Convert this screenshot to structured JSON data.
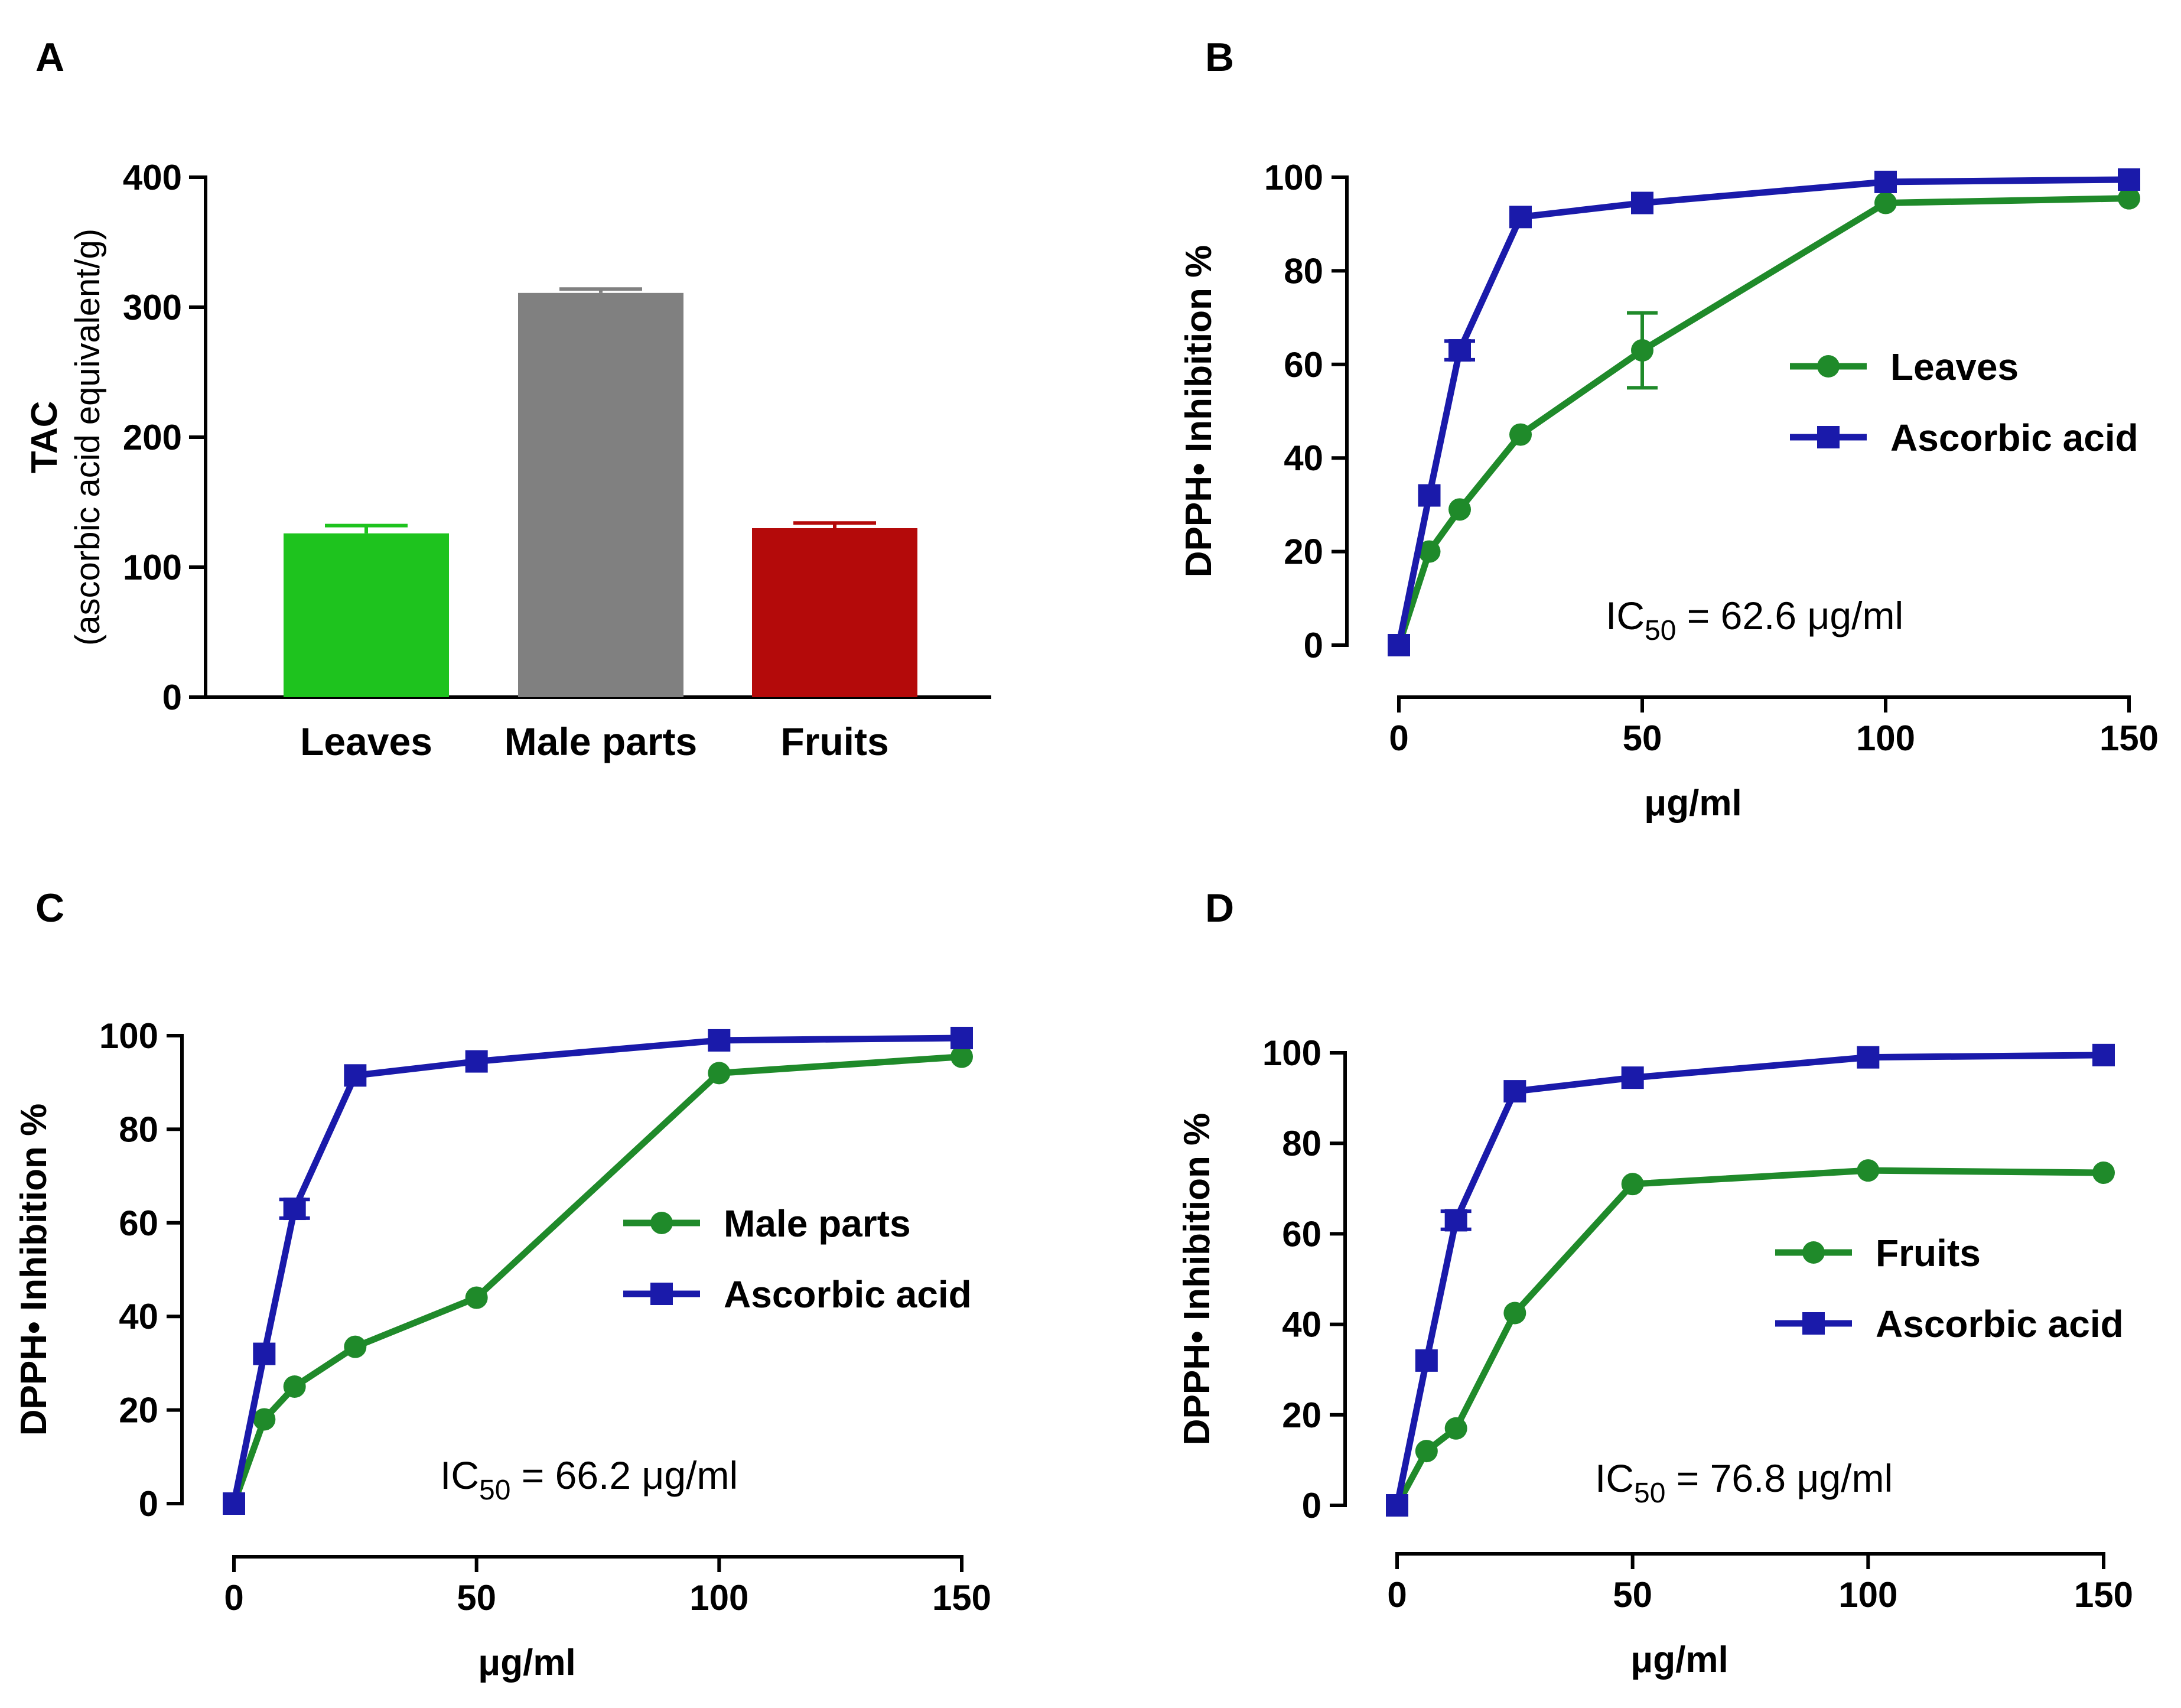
{
  "panels": {
    "A": {
      "letter": "A"
    },
    "B": {
      "letter": "B"
    },
    "C": {
      "letter": "C"
    },
    "D": {
      "letter": "D"
    }
  },
  "chart_data": [
    {
      "panel": "A",
      "type": "bar",
      "categories": [
        "Leaves",
        "Male parts",
        "Fruits"
      ],
      "values": [
        126,
        311,
        130
      ],
      "errors": [
        6,
        3,
        4
      ],
      "colors": [
        "#1ec31e",
        "#808080",
        "#b40a0a"
      ],
      "ylabel": "TAC",
      "ylabel_sub": "(ascorbic acid equivalent/g)",
      "ylim": [
        0,
        400
      ],
      "yticks": [
        0,
        100,
        200,
        300,
        400
      ]
    },
    {
      "panel": "B",
      "type": "line",
      "xlabel": "μg/ml",
      "ylabel": "DPPH• Inhibition %",
      "xlim": [
        0,
        150
      ],
      "ylim": [
        0,
        100
      ],
      "xticks": [
        0,
        50,
        100,
        150
      ],
      "yticks": [
        0,
        20,
        40,
        60,
        80,
        100
      ],
      "ic50_prefix": "IC",
      "ic50_sub": "50",
      "ic50_value": " = 62.6 μg/ml",
      "series": [
        {
          "name": "Leaves",
          "marker": "circle",
          "color": "#1f8a2a",
          "x": [
            0,
            6.25,
            12.5,
            25,
            50,
            100,
            150
          ],
          "y": [
            0,
            20,
            29,
            45,
            63,
            94.5,
            95.5
          ],
          "err": [
            0,
            0,
            0,
            0,
            8,
            0,
            0
          ]
        },
        {
          "name": "Ascorbic acid",
          "marker": "square",
          "color": "#1a1aaa",
          "x": [
            0,
            6.25,
            12.5,
            25,
            50,
            100,
            150
          ],
          "y": [
            0,
            32,
            63,
            91.5,
            94.5,
            99,
            99.5
          ],
          "err": [
            0,
            0,
            2,
            0,
            0,
            0,
            0
          ]
        }
      ]
    },
    {
      "panel": "C",
      "type": "line",
      "xlabel": "μg/ml",
      "ylabel": "DPPH• Inhibition %",
      "xlim": [
        0,
        150
      ],
      "ylim": [
        0,
        100
      ],
      "xticks": [
        0,
        50,
        100,
        150
      ],
      "yticks": [
        0,
        20,
        40,
        60,
        80,
        100
      ],
      "ic50_prefix": "IC",
      "ic50_sub": "50",
      "ic50_value": " = 66.2 μg/ml",
      "series": [
        {
          "name": "Male parts",
          "marker": "circle",
          "color": "#1f8a2a",
          "x": [
            0,
            6.25,
            12.5,
            25,
            50,
            100,
            150
          ],
          "y": [
            0,
            18,
            25,
            33.5,
            44,
            92,
            95.5
          ],
          "err": [
            0,
            0,
            0,
            0,
            0,
            0,
            0
          ]
        },
        {
          "name": "Ascorbic acid",
          "marker": "square",
          "color": "#1a1aaa",
          "x": [
            0,
            6.25,
            12.5,
            25,
            50,
            100,
            150
          ],
          "y": [
            0,
            32,
            63,
            91.5,
            94.5,
            99,
            99.5
          ],
          "err": [
            0,
            0,
            2,
            0,
            0,
            0,
            0
          ]
        }
      ]
    },
    {
      "panel": "D",
      "type": "line",
      "xlabel": "μg/ml",
      "ylabel": "DPPH• Inhibition %",
      "xlim": [
        0,
        150
      ],
      "ylim": [
        0,
        100
      ],
      "xticks": [
        0,
        50,
        100,
        150
      ],
      "yticks": [
        0,
        20,
        40,
        60,
        80,
        100
      ],
      "ic50_prefix": "IC",
      "ic50_sub": "50",
      "ic50_value": " = 76.8 μg/ml",
      "series": [
        {
          "name": "Fruits",
          "marker": "circle",
          "color": "#1f8a2a",
          "x": [
            0,
            6.25,
            12.5,
            25,
            50,
            100,
            150
          ],
          "y": [
            0,
            12,
            17,
            42.5,
            71,
            74,
            73.5
          ],
          "err": [
            0,
            0,
            0,
            0,
            0,
            0,
            0
          ]
        },
        {
          "name": "Ascorbic acid",
          "marker": "square",
          "color": "#1a1aaa",
          "x": [
            0,
            6.25,
            12.5,
            25,
            50,
            100,
            150
          ],
          "y": [
            0,
            32,
            63,
            91.5,
            94.5,
            99,
            99.5
          ],
          "err": [
            0,
            0,
            2,
            0,
            0,
            0,
            0
          ]
        }
      ]
    }
  ]
}
